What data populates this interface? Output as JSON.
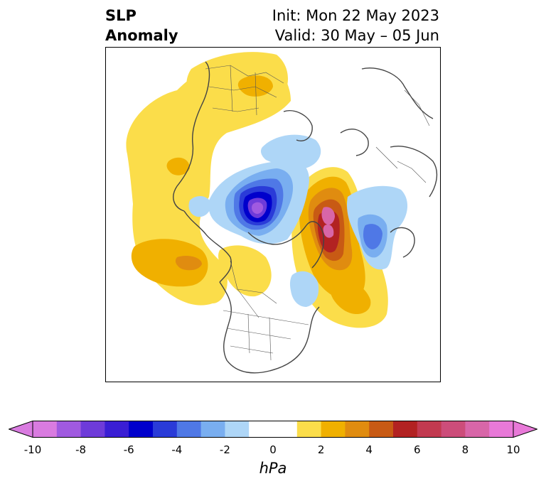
{
  "title": {
    "left_line1": "SLP",
    "left_line2": "Anomaly",
    "right_line1": "Init: Mon 22 May 2023",
    "right_line2": "Valid: 30 May – 05 Jun"
  },
  "colorbar": {
    "unit": "hPa",
    "ticks": [
      "-10",
      "-8",
      "-6",
      "-4",
      "-2",
      "0",
      "2",
      "4",
      "6",
      "8",
      "10"
    ],
    "extend_low_color": "#d97be0",
    "extend_high_color": "#e879d8",
    "segment_colors": [
      "#d97be0",
      "#a05ae0",
      "#6e3bd9",
      "#3a1ed4",
      "#0000cc",
      "#2a3bd8",
      "#4f78e6",
      "#79aef0",
      "#aed6f7",
      "#ffffff",
      "#ffffff",
      "#fbdd4a",
      "#f0b000",
      "#e08c10",
      "#c85a14",
      "#b22222",
      "#c23a50",
      "#cc4d7a",
      "#d866a8",
      "#e879d8"
    ]
  },
  "map": {
    "anomaly_colors": {
      "weak_positive": "#fbdd4a",
      "moderate_positive": "#f0b000",
      "strong_positive": "#e08c10",
      "very_strong_positive": "#c85a14",
      "extreme_positive": "#b22222",
      "max_positive": "#d866a8",
      "weak_negative": "#aed6f7",
      "moderate_negative": "#79aef0",
      "strong_negative": "#4f78e6",
      "very_strong_negative": "#2a3bd8",
      "extreme_negative": "#0000cc",
      "max_negative": "#6e3bd9",
      "core_negative": "#a05ae0",
      "coastline": "#444444"
    }
  }
}
